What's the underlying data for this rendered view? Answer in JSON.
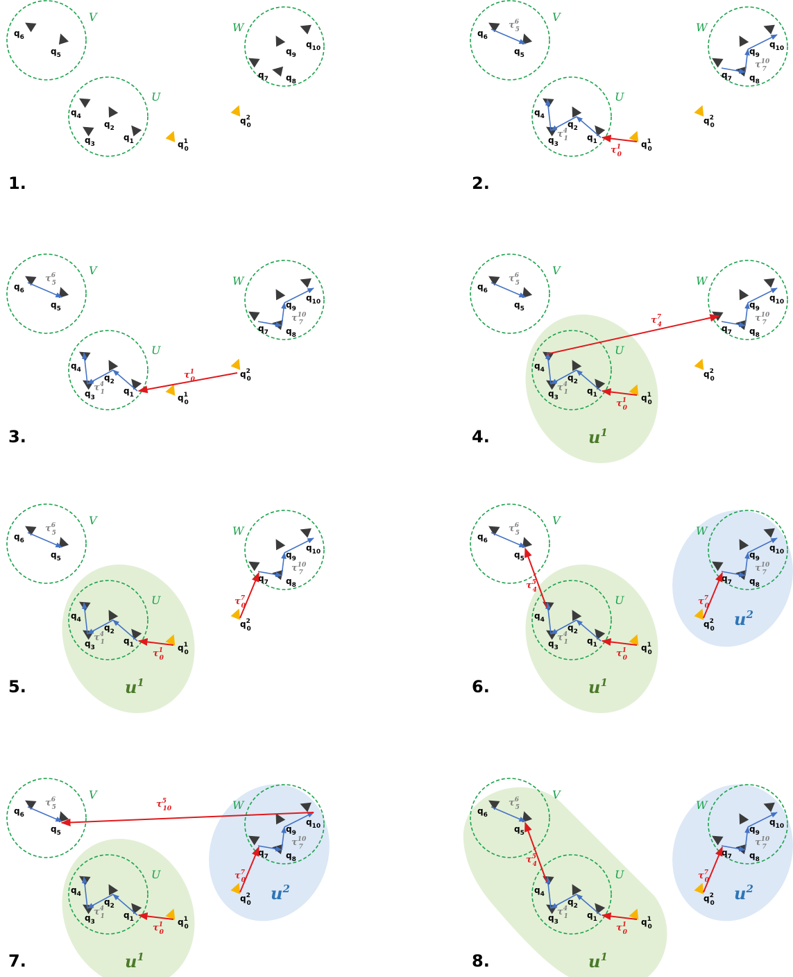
{
  "colors": {
    "region_circle": "#1aa24b",
    "blue_arrow": "#4472c4",
    "red_arrow": "#e0191c",
    "robot": "#3b3b3b",
    "start_robot": "#f7b500",
    "cluster_green_fill": "#e2efd5",
    "cluster_green_text": "#4c7a2a",
    "cluster_blue_fill": "#dce8f6",
    "cluster_blue_text": "#2e75b6",
    "label_gray": "#808080"
  },
  "regions": {
    "V": "V",
    "W": "W",
    "U": "U"
  },
  "nodes": {
    "q1": {
      "main": "q",
      "sub": "1",
      "sup": ""
    },
    "q2": {
      "main": "q",
      "sub": "2",
      "sup": ""
    },
    "q3": {
      "main": "q",
      "sub": "3",
      "sup": ""
    },
    "q4": {
      "main": "q",
      "sub": "4",
      "sup": ""
    },
    "q5": {
      "main": "q",
      "sub": "5",
      "sup": ""
    },
    "q6": {
      "main": "q",
      "sub": "6",
      "sup": ""
    },
    "q7": {
      "main": "q",
      "sub": "7",
      "sup": ""
    },
    "q8": {
      "main": "q",
      "sub": "8",
      "sup": ""
    },
    "q9": {
      "main": "q",
      "sub": "9",
      "sup": ""
    },
    "q10": {
      "main": "q",
      "sub": "10",
      "sup": ""
    },
    "q01": {
      "main": "q",
      "sub": "0",
      "sup": "1"
    },
    "q02": {
      "main": "q",
      "sub": "0",
      "sup": "2"
    }
  },
  "tau_labels": {
    "tau_5_6": {
      "main": "τ",
      "sub": "5",
      "sup": "6"
    },
    "tau_1_4": {
      "main": "τ",
      "sub": "1",
      "sup": "4"
    },
    "tau_7_10": {
      "main": "τ",
      "sub": "7",
      "sup": "10"
    },
    "tau_0_1": {
      "main": "τ",
      "sub": "0",
      "sup": "1"
    },
    "tau_4_7": {
      "main": "τ",
      "sub": "4",
      "sup": "7"
    },
    "tau_0_7": {
      "main": "τ",
      "sub": "0",
      "sup": "7"
    },
    "tau_4_5": {
      "main": "τ",
      "sub": "4",
      "sup": "5"
    },
    "tau_10_5": {
      "main": "τ",
      "sub": "10",
      "sup": "5"
    }
  },
  "clusters": {
    "u1": {
      "main": "u",
      "sup": "1"
    },
    "u2": {
      "main": "u",
      "sup": "2"
    }
  },
  "panels": [
    {
      "number": "1."
    },
    {
      "number": "2."
    },
    {
      "number": "3."
    },
    {
      "number": "4."
    },
    {
      "number": "5."
    },
    {
      "number": "6."
    },
    {
      "number": "7."
    },
    {
      "number": "8."
    }
  ]
}
